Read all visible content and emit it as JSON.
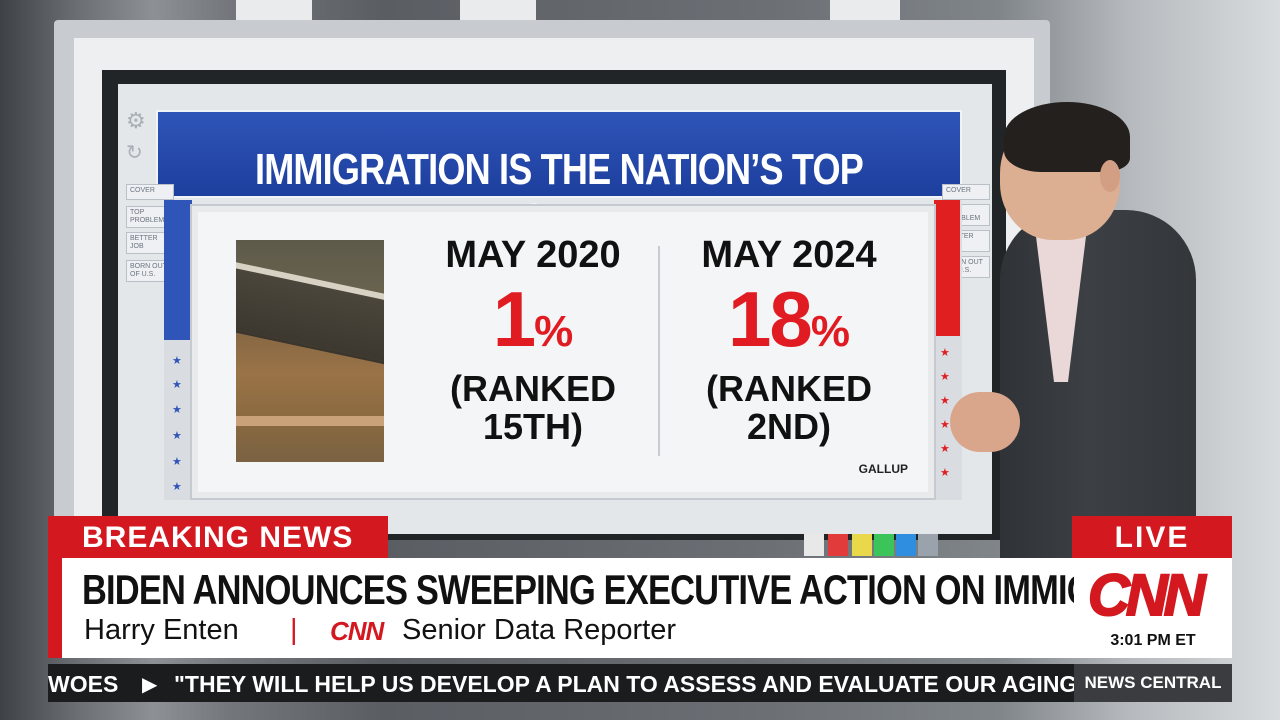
{
  "graphic": {
    "headline": "IMMIGRATION IS THE NATION’S TOP PROBLEM",
    "left_nav": [
      "COVER",
      "TOP PROBLEM",
      "BETTER JOB",
      "BORN OUT OF U.S."
    ],
    "right_nav": [
      "COVER",
      "TOP PROBLEM",
      "BETTER JOB",
      "BORN OUT OF U.S."
    ],
    "stats": [
      {
        "period": "MAY 2020",
        "value": "1",
        "unit": "%",
        "rank_line1": "(RANKED",
        "rank_line2": "15TH)"
      },
      {
        "period": "MAY 2024",
        "value": "18",
        "unit": "%",
        "rank_line1": "(RANKED",
        "rank_line2": "2ND)"
      }
    ],
    "source": "GALLUP",
    "accent_blue": "#2f55b8",
    "accent_red": "#e11b22"
  },
  "lower_third": {
    "tag": "BREAKING NEWS",
    "live": "LIVE",
    "headline": "BIDEN ANNOUNCES SWEEPING EXECUTIVE ACTION ON IMMIGRATION",
    "name": "Harry Enten",
    "separator": "|",
    "network_small": "CNN",
    "title": "Senior Data Reporter",
    "network_logo": "CNN",
    "time": "3:01 PM ET",
    "brand_red": "#d3181f"
  },
  "ticker": {
    "lead": "WOES",
    "text": "\"THEY WILL HELP US DEVELOP A PLAN TO ASSESS AND EVALUATE OUR AGING",
    "program": "NEWS CENTRAL"
  },
  "swatches": [
    "#e8e8e8",
    "#e23b3b",
    "#e8d84a",
    "#3bc45a",
    "#2f8ee0",
    "#9aa2ab"
  ]
}
